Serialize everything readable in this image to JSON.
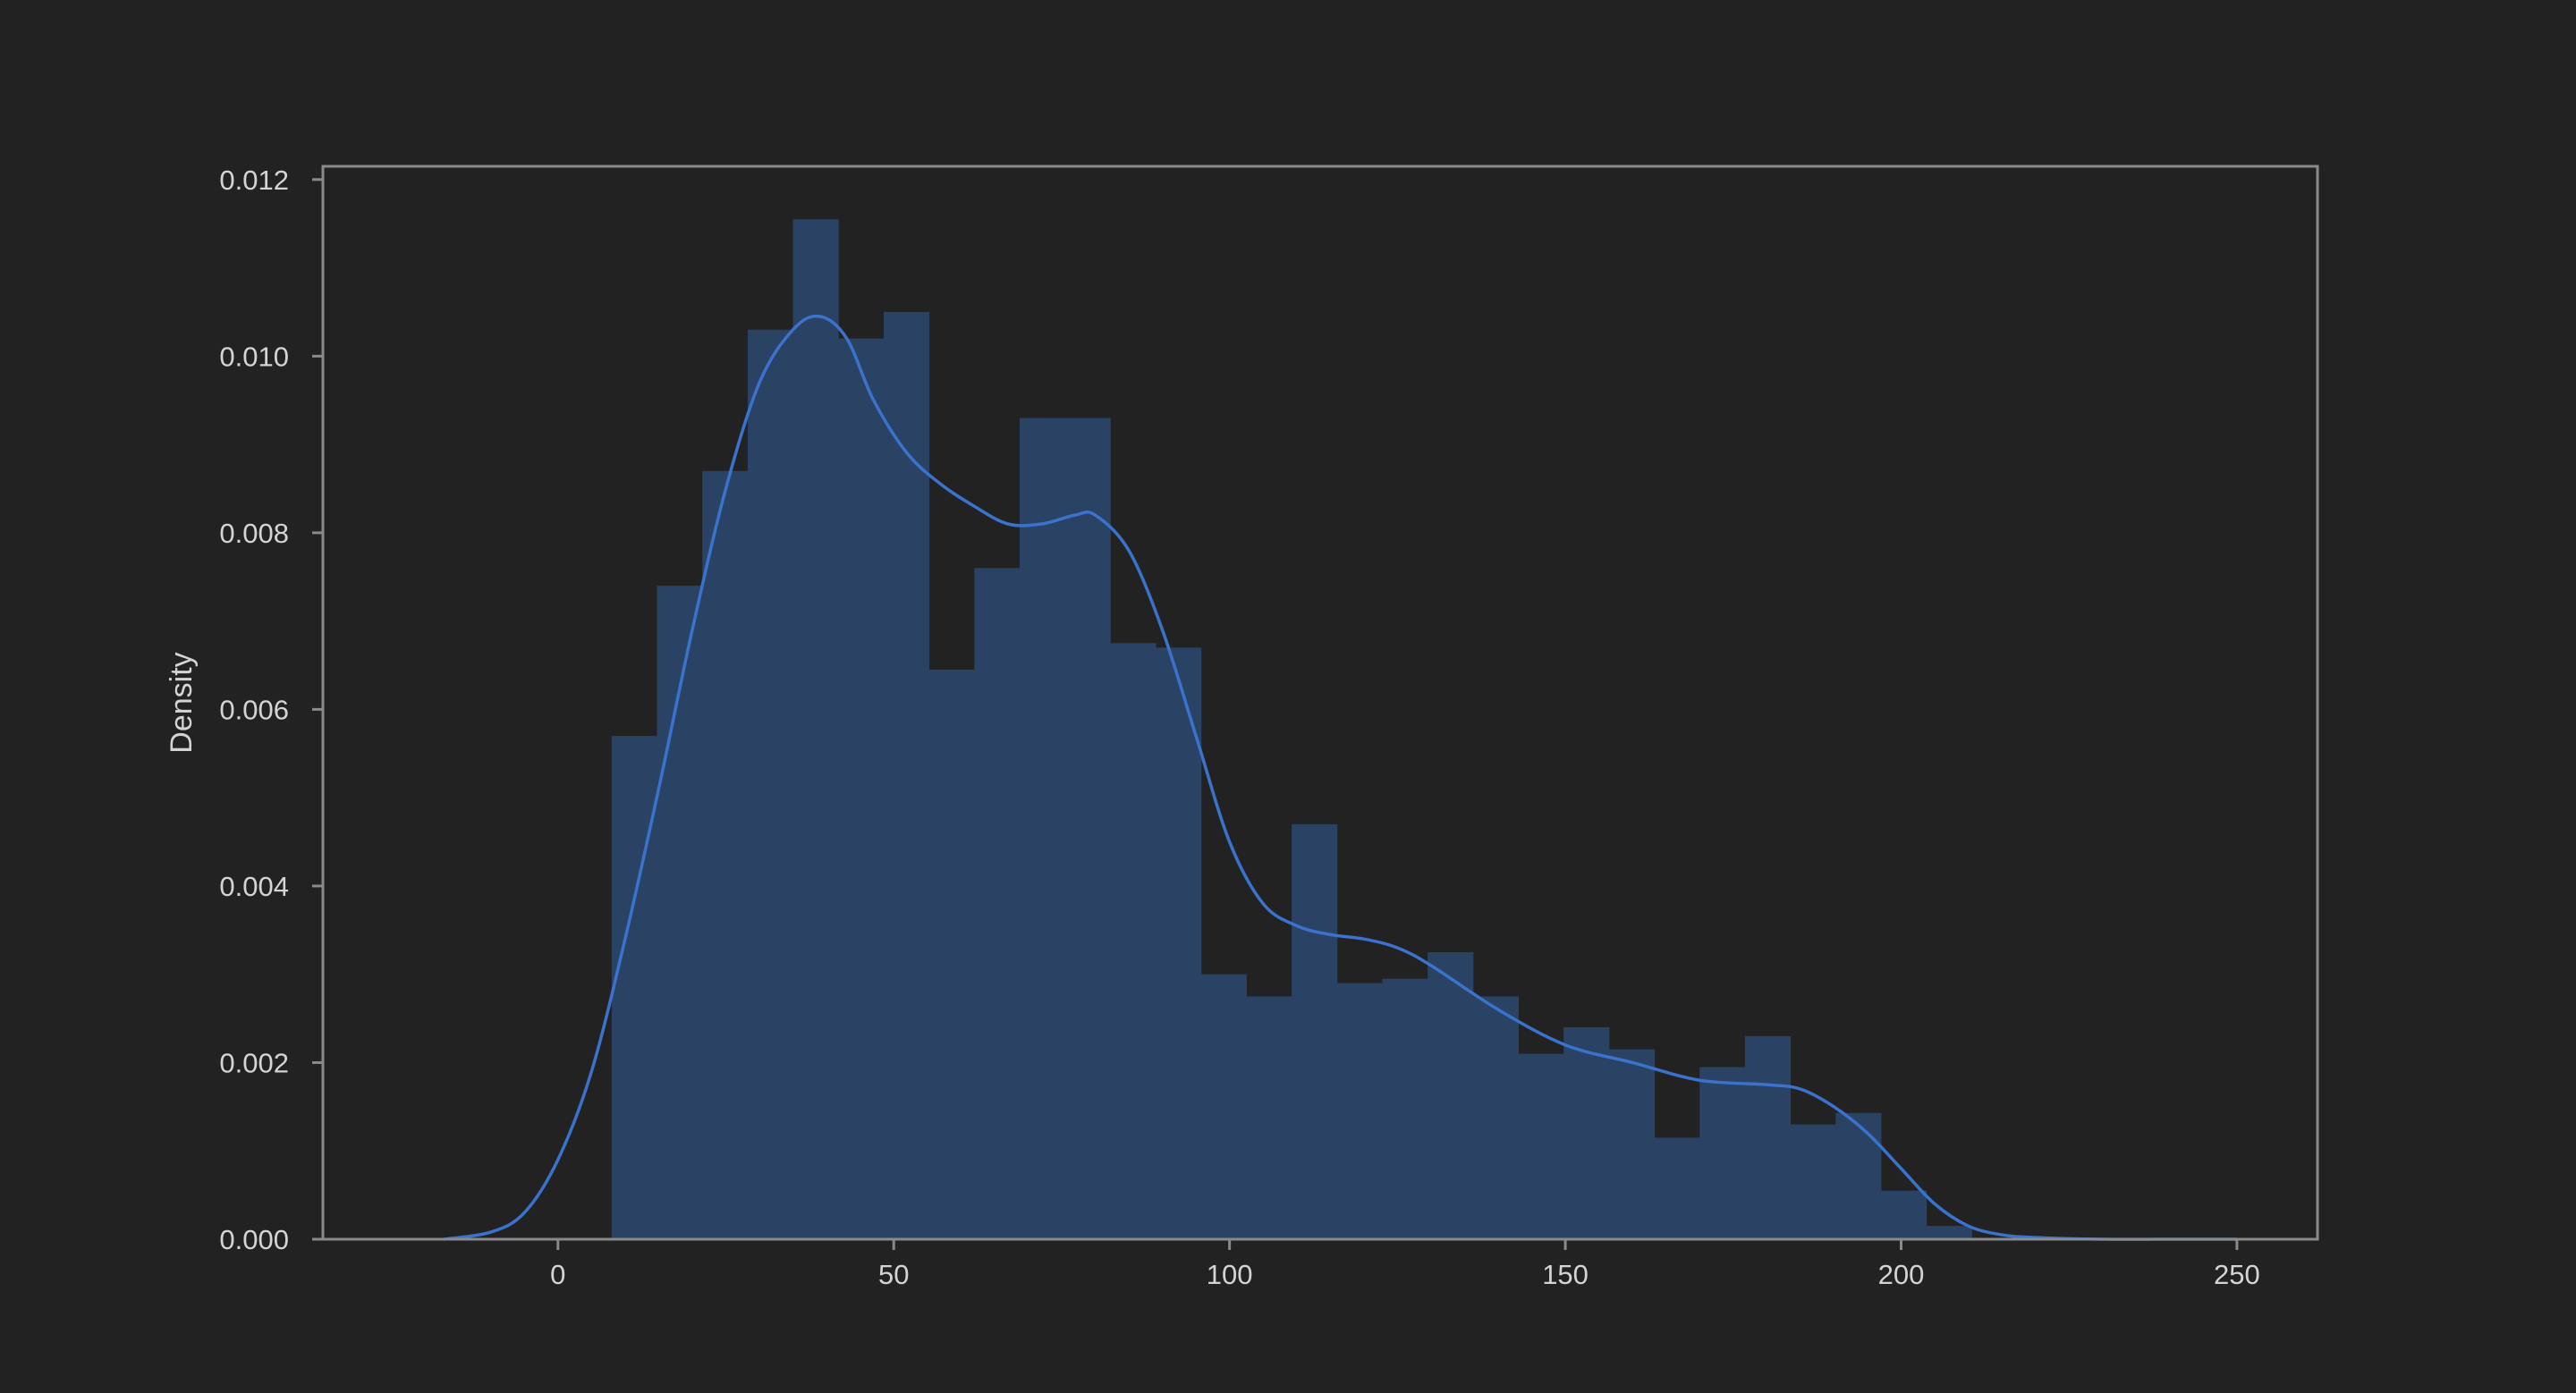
{
  "chart_data": {
    "type": "bar",
    "title": "",
    "xlabel": "",
    "ylabel": "Density",
    "xlim": [
      -35,
      262
    ],
    "ylim": [
      0,
      0.01215
    ],
    "xticks": [
      0,
      50,
      100,
      150,
      200,
      250
    ],
    "xtick_labels": [
      "0",
      "50",
      "100",
      "150",
      "200",
      "250"
    ],
    "yticks": [
      0.0,
      0.002,
      0.004,
      0.006,
      0.008,
      0.01,
      0.012
    ],
    "ytick_labels": [
      "0.000",
      "0.002",
      "0.004",
      "0.006",
      "0.008",
      "0.010",
      "0.012"
    ],
    "grid": false,
    "colors": {
      "background": "#222222",
      "bars": "#2a4263",
      "kde_line": "#3a72cc",
      "frame": "#8a8a8a",
      "text": "#d4d4d4"
    },
    "histogram": {
      "bin_edges": [
        8.0,
        14.75,
        21.5,
        28.25,
        35.0,
        41.75,
        48.5,
        55.25,
        62.0,
        68.75,
        75.5,
        82.25,
        89.0,
        95.75,
        102.5,
        109.25,
        116.0,
        122.75,
        129.5,
        136.25,
        143.0,
        149.75,
        156.5,
        163.25,
        170.0,
        176.75,
        183.5,
        190.25,
        197.0,
        203.75,
        210.5
      ],
      "densities": [
        0.0057,
        0.0074,
        0.0087,
        0.0103,
        0.01155,
        0.0102,
        0.0105,
        0.00645,
        0.0076,
        0.0093,
        0.0093,
        0.00675,
        0.0067,
        0.003,
        0.00275,
        0.0047,
        0.0029,
        0.00295,
        0.00325,
        0.00275,
        0.0021,
        0.0024,
        0.00215,
        0.00115,
        0.00195,
        0.0023,
        0.0013,
        0.00143,
        0.00055,
        0.00015
      ]
    },
    "kde": {
      "x": [
        -17,
        -10,
        -5,
        0,
        5,
        10,
        15,
        20,
        25,
        30,
        35,
        39,
        43,
        47,
        52,
        57,
        62,
        67,
        72,
        77,
        80,
        85,
        90,
        95,
        100,
        105,
        110,
        115,
        120,
        125,
        130,
        140,
        150,
        160,
        170,
        180,
        185,
        190,
        195,
        200,
        205,
        210,
        215,
        220,
        230,
        240,
        250
      ],
      "y": [
        0.0,
        8e-05,
        0.0003,
        0.0009,
        0.0019,
        0.0034,
        0.0051,
        0.0069,
        0.0085,
        0.0097,
        0.0103,
        0.01045,
        0.0102,
        0.0095,
        0.0089,
        0.00855,
        0.0083,
        0.0081,
        0.0081,
        0.0082,
        0.0082,
        0.0078,
        0.0069,
        0.0057,
        0.0045,
        0.0038,
        0.00355,
        0.00345,
        0.0034,
        0.0033,
        0.0031,
        0.0026,
        0.0022,
        0.002,
        0.0018,
        0.00175,
        0.0017,
        0.0015,
        0.0012,
        0.0008,
        0.0004,
        0.00015,
        5e-05,
        2e-05,
        0.0,
        0.0,
        0.0
      ]
    }
  }
}
